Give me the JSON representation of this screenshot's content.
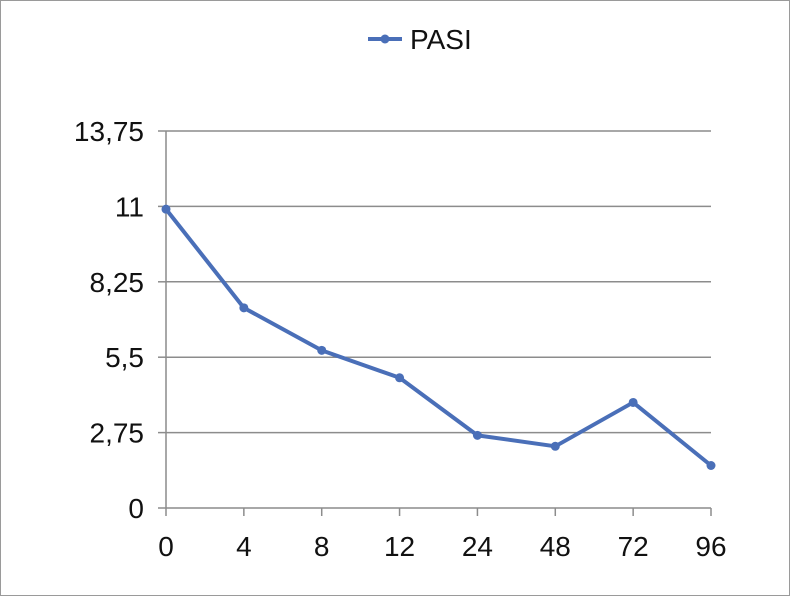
{
  "chart_data": {
    "type": "line",
    "categories": [
      "0",
      "4",
      "8",
      "12",
      "24",
      "48",
      "72",
      "96"
    ],
    "series": [
      {
        "name": "PASI",
        "values": [
          10.9,
          7.3,
          5.75,
          4.75,
          2.65,
          2.25,
          3.85,
          1.55
        ]
      }
    ],
    "y_ticks": [
      "0",
      "2,75",
      "5,5",
      "8,25",
      "11",
      "13,75"
    ],
    "ylim": [
      0,
      13.75
    ],
    "grid": "horizontal",
    "legend_position": "top-center",
    "colors": {
      "series": "#4a6fb8",
      "grid": "#8c8c8c",
      "axis": "#8c8c8c"
    }
  }
}
